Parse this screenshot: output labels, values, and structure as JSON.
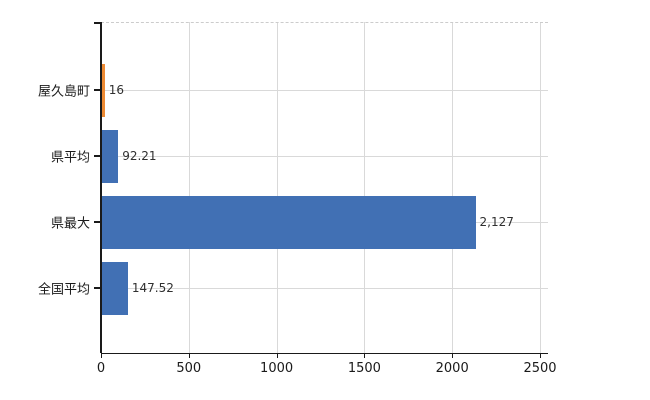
{
  "chart_data": {
    "type": "bar",
    "orientation": "horizontal",
    "categories": [
      "屋久島町",
      "県平均",
      "県最大",
      "全国平均"
    ],
    "values": [
      16,
      92.21,
      2127,
      147.52
    ],
    "value_labels": [
      "16",
      "92.21",
      "2,127",
      "147.52"
    ],
    "bar_colors": [
      "#ED8A33",
      "#4170B4",
      "#4170B4",
      "#4170B4"
    ],
    "xlim": [
      0,
      2500
    ],
    "xticks": [
      0,
      500,
      1000,
      1500,
      2000,
      2500
    ],
    "xtick_labels": [
      "0",
      "500",
      "1000",
      "1500",
      "2000",
      "2500"
    ],
    "grid": true,
    "legend": false
  },
  "colors": {
    "highlight_bar": "#ED8A33",
    "default_bar": "#4170B4",
    "gridline": "#D9D9D9",
    "axis": "#1A1A1A",
    "value_text": "#303030",
    "tick_text": "#1A1A1A",
    "background": "#FFFFFF"
  }
}
